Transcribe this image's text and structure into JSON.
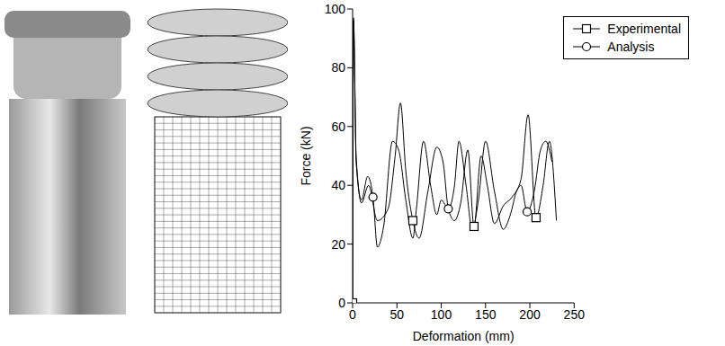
{
  "chart_data": {
    "type": "line",
    "x_label": "Deformation (mm)",
    "y_label": "Force (kN)",
    "xlim": [
      0,
      250
    ],
    "xticks": [
      0,
      50,
      100,
      150,
      200,
      250
    ],
    "ylim": [
      0,
      100
    ],
    "yticks": [
      0,
      20,
      40,
      60,
      80,
      100
    ],
    "legend": "upper right",
    "series": [
      {
        "name": "Experimental",
        "color": "#000000",
        "marker": "square",
        "x": [
          0,
          1,
          4,
          10,
          18,
          28,
          40,
          48,
          54,
          60,
          68,
          75,
          85,
          95,
          102,
          108,
          115,
          122,
          130,
          137,
          145,
          152,
          160,
          170,
          180,
          190,
          198,
          207,
          215,
          222,
          230
        ],
        "values": [
          0,
          97,
          50,
          34,
          40,
          28,
          32,
          50,
          68,
          45,
          28,
          22,
          38,
          53,
          48,
          32,
          28,
          34,
          52,
          26,
          50,
          40,
          27,
          33,
          36,
          42,
          64,
          29,
          40,
          55,
          28
        ]
      },
      {
        "name": "Analysis",
        "color": "#000000",
        "marker": "circle",
        "x": [
          0,
          1,
          4,
          10,
          17,
          23,
          28,
          35,
          45,
          52,
          60,
          68,
          72,
          80,
          88,
          95,
          100,
          108,
          115,
          120,
          128,
          135,
          142,
          150,
          160,
          170,
          178,
          185,
          190,
          197,
          205,
          212,
          218,
          225
        ],
        "values": [
          0,
          96,
          48,
          35,
          43,
          36,
          19,
          26,
          55,
          52,
          35,
          22,
          32,
          55,
          40,
          30,
          35,
          32,
          40,
          55,
          40,
          25,
          35,
          55,
          38,
          25,
          30,
          38,
          40,
          31,
          38,
          52,
          55,
          48
        ]
      }
    ]
  }
}
